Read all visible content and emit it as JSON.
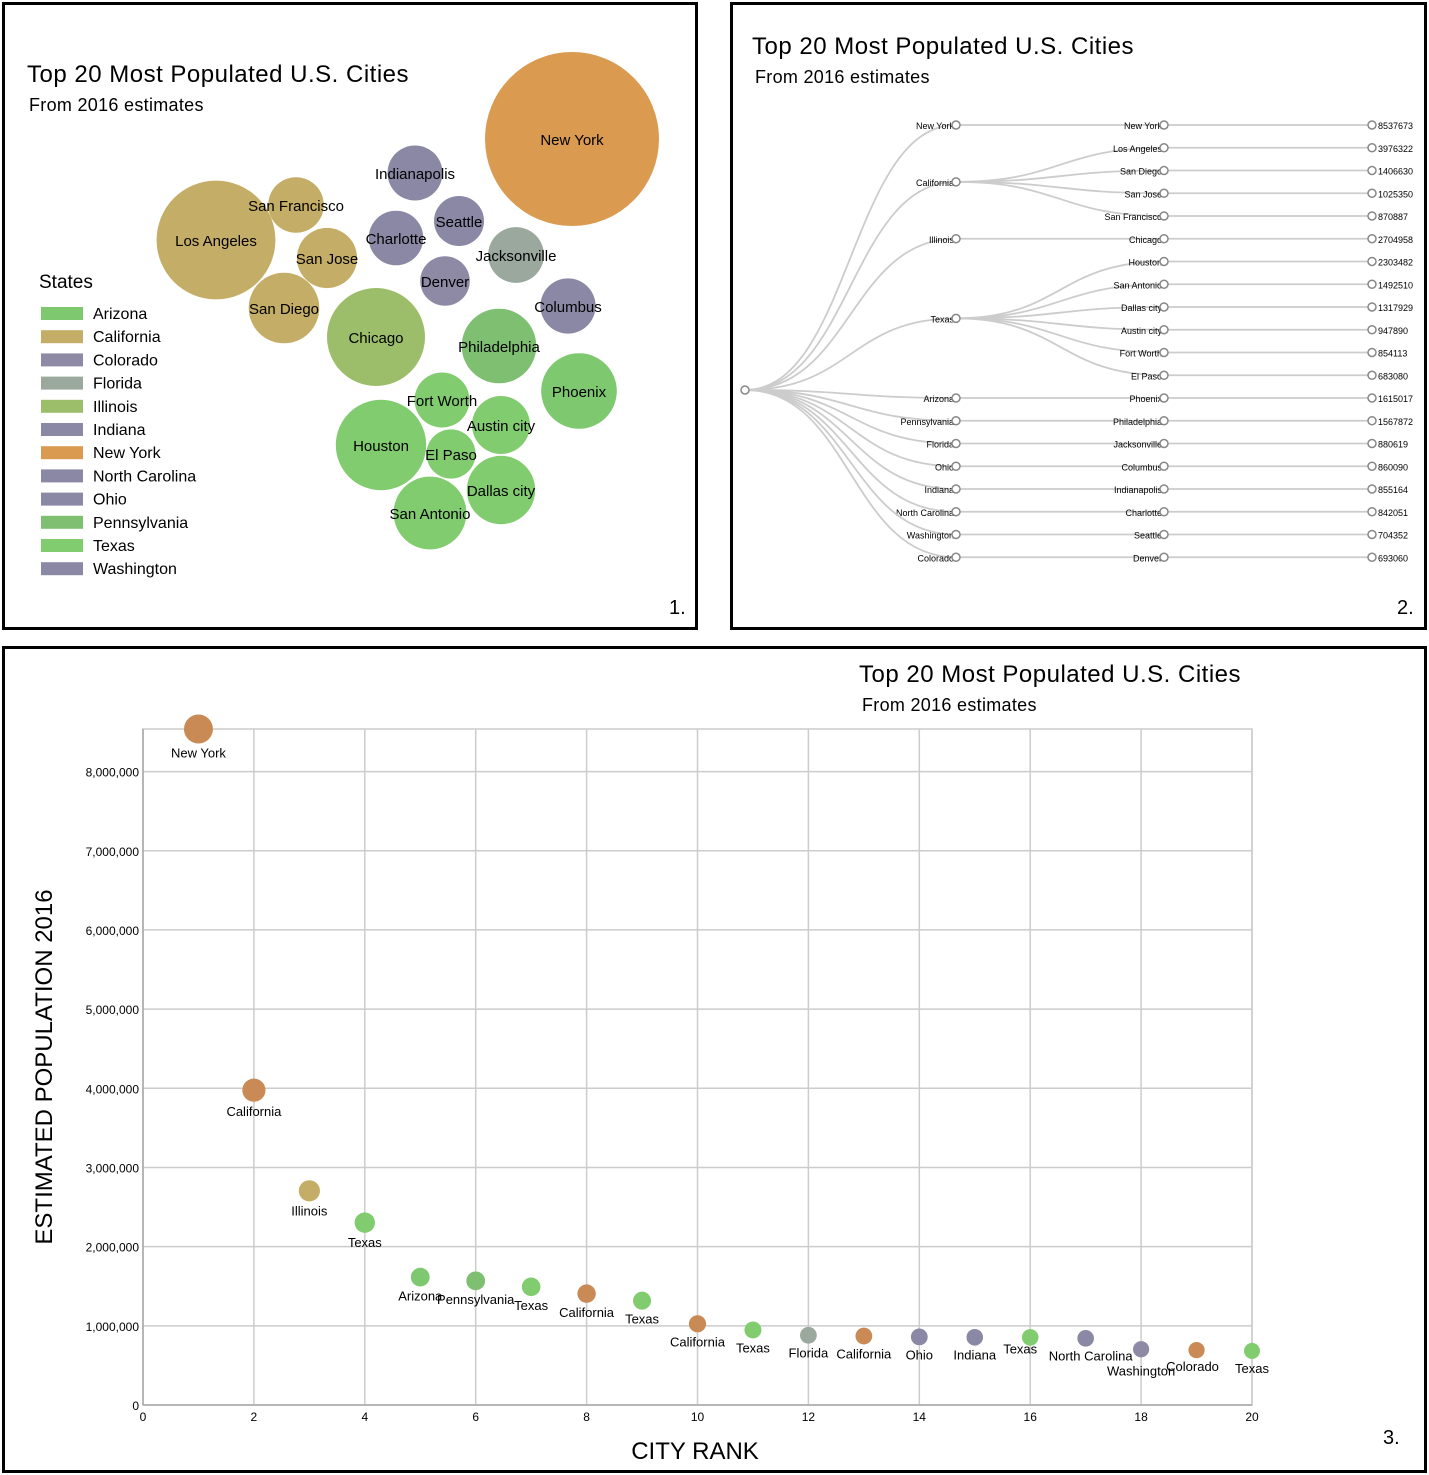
{
  "title": "Top 20 Most Populated U.S. Cities",
  "subtitle": "From 2016 estimates",
  "state_colors": {
    "Arizona": "#7ec96f",
    "California": "#c4ad66",
    "Colorado": "#8e8aa6",
    "Florida": "#9aa89e",
    "Illinois": "#9cbe6a",
    "Indiana": "#8a88a4",
    "New York": "#da9a50",
    "North Carolina": "#8a88a4",
    "Ohio": "#8a88a4",
    "Pennsylvania": "#7fbf72",
    "Texas": "#82cc70",
    "Washington": "#8a88a4"
  },
  "chart_data": [
    {
      "type": "bubble-pack",
      "panel_label": "1.",
      "title": "Top 20 Most Populated U.S. Cities",
      "subtitle": "From 2016 estimates",
      "legend_title": "States",
      "legend": [
        "Arizona",
        "California",
        "Colorado",
        "Florida",
        "Illinois",
        "Indiana",
        "New York",
        "North Carolina",
        "Ohio",
        "Pennsylvania",
        "Texas",
        "Washington"
      ],
      "bubbles": [
        {
          "city": "New York",
          "state": "New York",
          "value": 8537673
        },
        {
          "city": "Los Angeles",
          "state": "California",
          "value": 3976322
        },
        {
          "city": "Chicago",
          "state": "Illinois",
          "value": 2704958
        },
        {
          "city": "Houston",
          "state": "Texas",
          "value": 2303482
        },
        {
          "city": "Phoenix",
          "state": "Arizona",
          "value": 1615017
        },
        {
          "city": "Philadelphia",
          "state": "Pennsylvania",
          "value": 1567872
        },
        {
          "city": "San Antonio",
          "state": "Texas",
          "value": 1492510
        },
        {
          "city": "San Diego",
          "state": "California",
          "value": 1406630
        },
        {
          "city": "Dallas city",
          "state": "Texas",
          "value": 1317929
        },
        {
          "city": "San Jose",
          "state": "California",
          "value": 1025350
        },
        {
          "city": "Austin city",
          "state": "Texas",
          "value": 947890
        },
        {
          "city": "Jacksonville",
          "state": "Florida",
          "value": 880619
        },
        {
          "city": "San Francisco",
          "state": "California",
          "value": 870887
        },
        {
          "city": "Columbus",
          "state": "Ohio",
          "value": 860090
        },
        {
          "city": "Indianapolis",
          "state": "Indiana",
          "value": 855164
        },
        {
          "city": "Fort Worth",
          "state": "Texas",
          "value": 854113
        },
        {
          "city": "Charlotte",
          "state": "North Carolina",
          "value": 842051
        },
        {
          "city": "Seattle",
          "state": "Washington",
          "value": 704352
        },
        {
          "city": "Denver",
          "state": "Colorado",
          "value": 693060
        },
        {
          "city": "El Paso",
          "state": "Texas",
          "value": 683080
        }
      ]
    },
    {
      "type": "tree",
      "panel_label": "2.",
      "title": "Top 20 Most Populated U.S. Cities",
      "subtitle": "From 2016 estimates",
      "states": [
        {
          "state": "New York",
          "cities": [
            {
              "city": "New York",
              "value": 8537673
            }
          ]
        },
        {
          "state": "California",
          "cities": [
            {
              "city": "Los Angeles",
              "value": 3976322
            },
            {
              "city": "San Diego",
              "value": 1406630
            },
            {
              "city": "San Jose",
              "value": 1025350
            },
            {
              "city": "San Francisco",
              "value": 870887
            }
          ]
        },
        {
          "state": "Illinois",
          "cities": [
            {
              "city": "Chicago",
              "value": 2704958
            }
          ]
        },
        {
          "state": "Texas",
          "cities": [
            {
              "city": "Houston",
              "value": 2303482
            },
            {
              "city": "San Antonio",
              "value": 1492510
            },
            {
              "city": "Dallas city",
              "value": 1317929
            },
            {
              "city": "Austin city",
              "value": 947890
            },
            {
              "city": "Fort Worth",
              "value": 854113
            },
            {
              "city": "El Paso",
              "value": 683080
            }
          ]
        },
        {
          "state": "Arizona",
          "cities": [
            {
              "city": "Phoenix",
              "value": 1615017
            }
          ]
        },
        {
          "state": "Pennsylvania",
          "cities": [
            {
              "city": "Philadelphia",
              "value": 1567872
            }
          ]
        },
        {
          "state": "Florida",
          "cities": [
            {
              "city": "Jacksonville",
              "value": 880619
            }
          ]
        },
        {
          "state": "Ohio",
          "cities": [
            {
              "city": "Columbus",
              "value": 860090
            }
          ]
        },
        {
          "state": "Indiana",
          "cities": [
            {
              "city": "Indianapolis",
              "value": 855164
            }
          ]
        },
        {
          "state": "North Carolina",
          "cities": [
            {
              "city": "Charlotte",
              "value": 842051
            }
          ]
        },
        {
          "state": "Washington",
          "cities": [
            {
              "city": "Seattle",
              "value": 704352
            }
          ]
        },
        {
          "state": "Colorado",
          "cities": [
            {
              "city": "Denver",
              "value": 693060
            }
          ]
        }
      ]
    },
    {
      "type": "scatter",
      "panel_label": "3.",
      "title": "Top 20 Most Populated U.S. Cities",
      "subtitle": "From 2016 estimates",
      "xlabel": "CITY RANK",
      "ylabel": "ESTIMATED POPULATION 2016",
      "xlim": [
        0,
        20
      ],
      "ylim": [
        0,
        8500000
      ],
      "xticks": [
        0,
        2,
        4,
        6,
        8,
        10,
        12,
        14,
        16,
        18,
        20
      ],
      "yticks": [
        0,
        1000000,
        2000000,
        3000000,
        4000000,
        5000000,
        6000000,
        7000000,
        8000000
      ],
      "ytick_labels": [
        "0",
        "1,000,000",
        "2,000,000",
        "3,000,000",
        "4,000,000",
        "5,000,000",
        "6,000,000",
        "7,000,000",
        "8,000,000"
      ],
      "grid": true,
      "points": [
        {
          "x": 1,
          "y": 8537673,
          "label": "New York",
          "state": "New York"
        },
        {
          "x": 2,
          "y": 3976322,
          "label": "California",
          "state": "California"
        },
        {
          "x": 3,
          "y": 2704958,
          "label": "Illinois",
          "state": "Illinois"
        },
        {
          "x": 4,
          "y": 2303482,
          "label": "Texas",
          "state": "Texas"
        },
        {
          "x": 5,
          "y": 1615017,
          "label": "Arizona",
          "state": "Arizona"
        },
        {
          "x": 6,
          "y": 1567872,
          "label": "Pennsylvania",
          "state": "Pennsylvania"
        },
        {
          "x": 7,
          "y": 1492510,
          "label": "Texas",
          "state": "Texas"
        },
        {
          "x": 8,
          "y": 1406630,
          "label": "California",
          "state": "California"
        },
        {
          "x": 9,
          "y": 1317929,
          "label": "Texas",
          "state": "Texas"
        },
        {
          "x": 10,
          "y": 1025350,
          "label": "California",
          "state": "California"
        },
        {
          "x": 11,
          "y": 947890,
          "label": "Texas",
          "state": "Texas"
        },
        {
          "x": 12,
          "y": 880619,
          "label": "Florida",
          "state": "Florida"
        },
        {
          "x": 13,
          "y": 870887,
          "label": "California",
          "state": "California"
        },
        {
          "x": 14,
          "y": 860090,
          "label": "Ohio",
          "state": "Ohio"
        },
        {
          "x": 15,
          "y": 855164,
          "label": "Indiana",
          "state": "Indiana"
        },
        {
          "x": 16,
          "y": 854113,
          "label": "Texas",
          "state": "Texas"
        },
        {
          "x": 17,
          "y": 842051,
          "label": "North Carolina",
          "state": "North Carolina"
        },
        {
          "x": 18,
          "y": 704352,
          "label": "Washington",
          "state": "Washington"
        },
        {
          "x": 19,
          "y": 693060,
          "label": "Colorado",
          "state": "Colorado"
        },
        {
          "x": 20,
          "y": 683080,
          "label": "Texas",
          "state": "Texas"
        }
      ],
      "point_colors": [
        "#c98a55",
        "#c98a55",
        "#c4ad66",
        "#82cc70",
        "#7ec96f",
        "#7fbf72",
        "#82cc70",
        "#c98a55",
        "#82cc70",
        "#c98a55",
        "#82cc70",
        "#9aa89e",
        "#c98a55",
        "#8a88a4",
        "#8a88a4",
        "#82cc70",
        "#8a88a4",
        "#8e8aa6",
        "#c98a55",
        "#82cc70"
      ]
    }
  ]
}
